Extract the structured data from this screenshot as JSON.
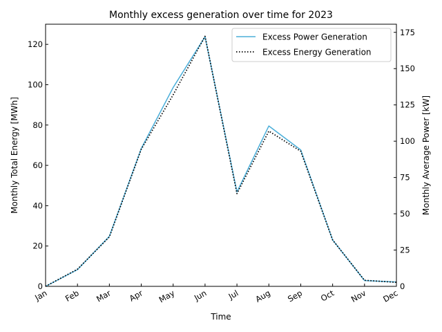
{
  "chart_data": {
    "type": "line",
    "title": "Monthly excess generation over time for 2023",
    "xlabel": "Time",
    "ylabel": "Monthly Total Energy [MWh]",
    "ylabel_right": "Monthly Average Power [kW]",
    "categories": [
      "Jan",
      "Feb",
      "Mar",
      "Apr",
      "May",
      "Jun",
      "Jul",
      "Aug",
      "Sep",
      "Oct",
      "Nov",
      "Dec"
    ],
    "ylim": [
      0,
      130
    ],
    "ylim_right": [
      0,
      180.6
    ],
    "yticks": [
      0,
      20,
      40,
      60,
      80,
      100,
      120
    ],
    "yticks_right": [
      0,
      25,
      50,
      75,
      100,
      125,
      150,
      175
    ],
    "grid": false,
    "legend_position": "top-right",
    "series": [
      {
        "name": "Excess Power Generation",
        "axis": "right",
        "color": "#4aaed9",
        "style": "solid",
        "values": [
          0,
          11.5,
          34.5,
          95,
          137,
          172,
          65,
          110.5,
          94,
          32,
          4,
          3
        ]
      },
      {
        "name": "Excess Energy Generation",
        "axis": "left",
        "color": "#000000",
        "style": "dotted",
        "values": [
          0,
          8.5,
          24.5,
          68,
          95,
          124,
          46,
          77,
          67,
          23,
          3,
          2
        ]
      }
    ]
  }
}
